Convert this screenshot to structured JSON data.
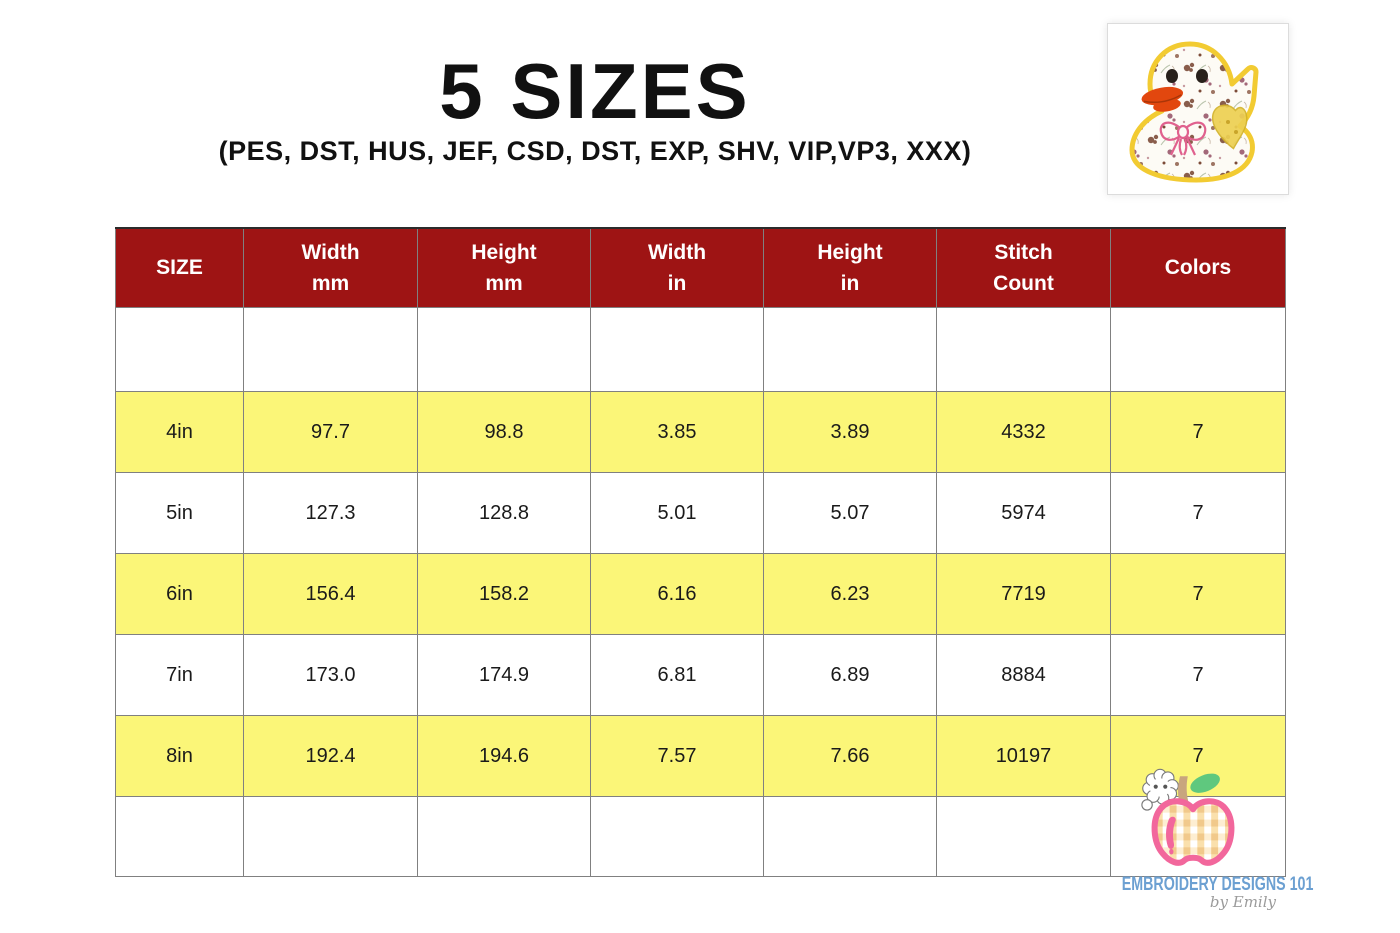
{
  "header": {
    "title": "5 SIZES",
    "subtitle": "(PES, DST, HUS, JEF, CSD, DST, EXP, SHV, VIP,VP3, XXX)"
  },
  "product_image": {
    "description": "floral fabric duck applique embroidery sample"
  },
  "size_table": {
    "columns": [
      "SIZE",
      "Width\nmm",
      "Height\nmm",
      "Width\nin",
      "Height\nin",
      "Stitch\nCount",
      "Colors"
    ],
    "rows": [
      {
        "cells": [
          "",
          "",
          "",
          "",
          "",
          "",
          ""
        ],
        "highlight": false,
        "kind": "spacer-top"
      },
      {
        "cells": [
          "4in",
          "97.7",
          "98.8",
          "3.85",
          "3.89",
          "4332",
          "7"
        ],
        "highlight": true,
        "kind": "data-row"
      },
      {
        "cells": [
          "5in",
          "127.3",
          "128.8",
          "5.01",
          "5.07",
          "5974",
          "7"
        ],
        "highlight": false,
        "kind": "data-row"
      },
      {
        "cells": [
          "6in",
          "156.4",
          "158.2",
          "6.16",
          "6.23",
          "7719",
          "7"
        ],
        "highlight": true,
        "kind": "data-row"
      },
      {
        "cells": [
          "7in",
          "173.0",
          "174.9",
          "6.81",
          "6.89",
          "8884",
          "7"
        ],
        "highlight": false,
        "kind": "data-row"
      },
      {
        "cells": [
          "8in",
          "192.4",
          "194.6",
          "7.57",
          "7.66",
          "10197",
          "7"
        ],
        "highlight": true,
        "kind": "data-row"
      },
      {
        "cells": [
          "",
          "",
          "",
          "",
          "",
          "",
          ""
        ],
        "highlight": false,
        "kind": "spacer-bottom"
      }
    ],
    "colors": {
      "header_bg": "#9E1414",
      "header_text": "#FFFFFF",
      "row_highlight": "#FBF678",
      "row_plain": "#FFFFFF",
      "grid": "#808080"
    }
  },
  "logo": {
    "brand": "EMBROIDERY DESIGNS 101",
    "byline": "by Emily",
    "brand_color": "#6CA0D2",
    "byline_color": "#9B9B9B"
  },
  "chart_data": {
    "type": "table",
    "title": "5 SIZES",
    "columns": [
      "SIZE",
      "Width mm",
      "Height mm",
      "Width in",
      "Height in",
      "Stitch Count",
      "Colors"
    ],
    "rows": [
      [
        "4in",
        97.7,
        98.8,
        3.85,
        3.89,
        4332,
        7
      ],
      [
        "5in",
        127.3,
        128.8,
        5.01,
        5.07,
        5974,
        7
      ],
      [
        "6in",
        156.4,
        158.2,
        6.16,
        6.23,
        7719,
        7
      ],
      [
        "7in",
        173.0,
        174.9,
        6.81,
        6.89,
        8884,
        7
      ],
      [
        "8in",
        192.4,
        194.6,
        7.57,
        7.66,
        10197,
        7
      ]
    ]
  }
}
